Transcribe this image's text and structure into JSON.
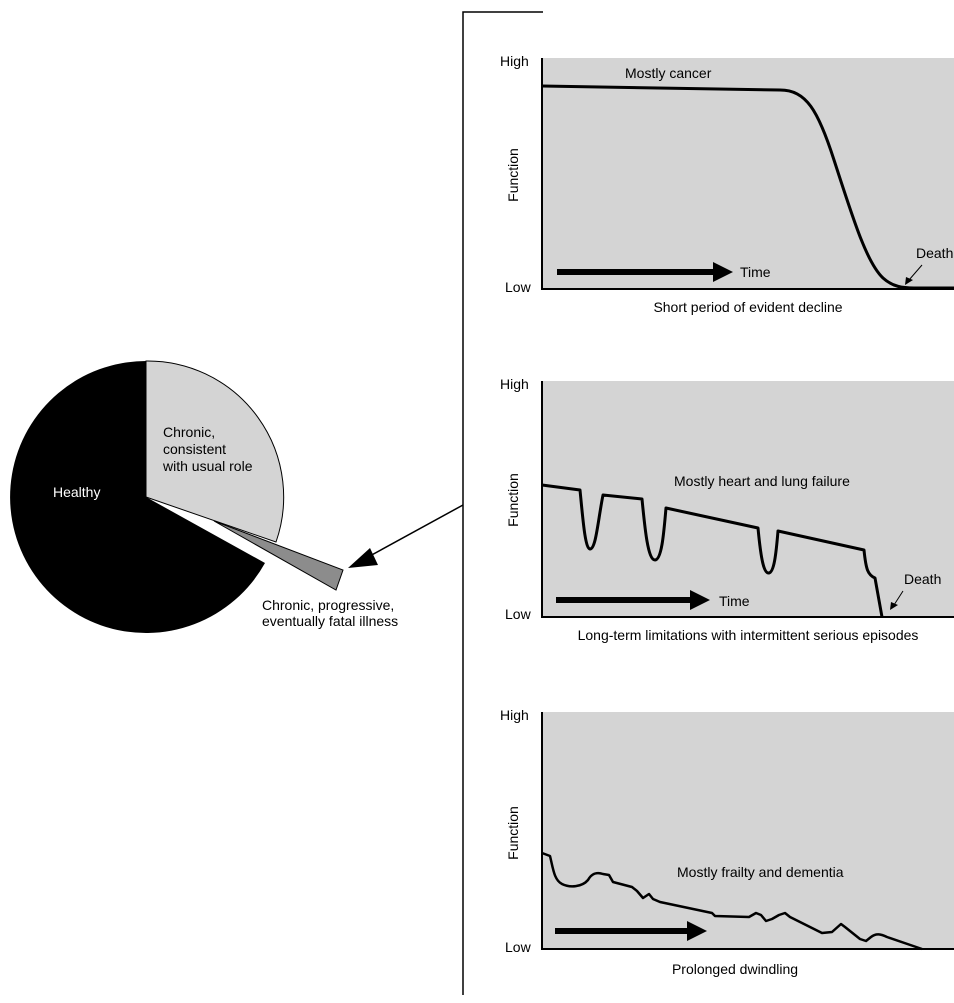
{
  "pie": {
    "slices": [
      {
        "label": "Healthy",
        "share": 0.69,
        "color": "#000000"
      },
      {
        "label_lines": [
          "Chronic,",
          "consistent",
          "with usual role"
        ],
        "share": 0.27,
        "color": "#d4d4d4"
      },
      {
        "label_lines": [
          "Chronic, progressive,",
          "eventually fatal illness"
        ],
        "share": 0.04,
        "color": "#8c8c8c"
      }
    ]
  },
  "panels": [
    {
      "y_high": "High",
      "y_low": "Low",
      "ylabel": "Function",
      "annotation": "Mostly cancer",
      "time_label": "Time",
      "death_label": "Death",
      "caption": "Short period of evident decline"
    },
    {
      "y_high": "High",
      "y_low": "Low",
      "ylabel": "Function",
      "annotation": "Mostly heart and lung failure",
      "time_label": "Time",
      "death_label": "Death",
      "caption": "Long-term limitations with intermittent serious episodes"
    },
    {
      "y_high": "High",
      "y_low": "Low",
      "ylabel": "Function",
      "annotation": "Mostly frailty and dementia",
      "caption": "Prolonged dwindling"
    }
  ],
  "colors": {
    "panel_bg": "#d4d4d4",
    "line": "#000000"
  }
}
